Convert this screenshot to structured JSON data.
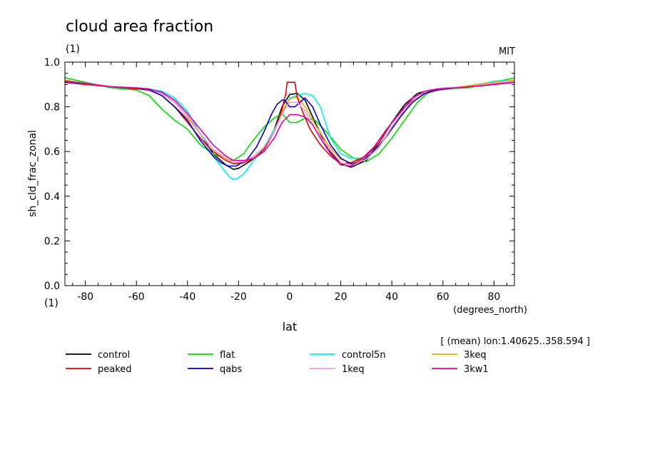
{
  "chart_data": {
    "type": "line",
    "title": "cloud area fraction",
    "subtitle_left": "(1)",
    "subtitle_right": "MIT",
    "ylabel": "sh_cld_frac_zonal",
    "yunit": "(1)",
    "xlabel": "lat",
    "xunit": "(degrees_north)",
    "annotation": "[ (mean) lon:1.40625..358.594 ]",
    "xlim": [
      -88,
      88
    ],
    "ylim": [
      0,
      1
    ],
    "xticks": [
      -80,
      -60,
      -40,
      -20,
      0,
      20,
      40,
      60,
      80
    ],
    "xtick_labels": [
      "-80",
      "-60",
      "-40",
      "-20",
      "0",
      "20",
      "40",
      "60",
      "80"
    ],
    "yticks": [
      0,
      0.2,
      0.4,
      0.6,
      0.8,
      1.0
    ],
    "ytick_labels": [
      "0.0",
      "0.2",
      "0.4",
      "0.6",
      "0.8",
      "1.0"
    ],
    "grid": false,
    "legend_position": "bottom",
    "series": [
      {
        "name": "control",
        "color": "#000000",
        "points": [
          [
            -88,
            0.91
          ],
          [
            -80,
            0.905
          ],
          [
            -70,
            0.89
          ],
          [
            -60,
            0.885
          ],
          [
            -55,
            0.88
          ],
          [
            -50,
            0.86
          ],
          [
            -45,
            0.82
          ],
          [
            -40,
            0.76
          ],
          [
            -35,
            0.68
          ],
          [
            -30,
            0.59
          ],
          [
            -25,
            0.54
          ],
          [
            -22,
            0.52
          ],
          [
            -20,
            0.525
          ],
          [
            -15,
            0.56
          ],
          [
            -10,
            0.61
          ],
          [
            -6,
            0.7
          ],
          [
            -3,
            0.8
          ],
          [
            0,
            0.855
          ],
          [
            3,
            0.86
          ],
          [
            6,
            0.83
          ],
          [
            10,
            0.73
          ],
          [
            15,
            0.61
          ],
          [
            20,
            0.545
          ],
          [
            24,
            0.53
          ],
          [
            30,
            0.56
          ],
          [
            35,
            0.64
          ],
          [
            40,
            0.73
          ],
          [
            45,
            0.81
          ],
          [
            50,
            0.86
          ],
          [
            55,
            0.875
          ],
          [
            60,
            0.88
          ],
          [
            70,
            0.89
          ],
          [
            80,
            0.9
          ],
          [
            88,
            0.91
          ]
        ]
      },
      {
        "name": "flat",
        "color": "#00dd00",
        "points": [
          [
            -88,
            0.93
          ],
          [
            -80,
            0.91
          ],
          [
            -70,
            0.885
          ],
          [
            -65,
            0.88
          ],
          [
            -60,
            0.875
          ],
          [
            -55,
            0.85
          ],
          [
            -50,
            0.79
          ],
          [
            -45,
            0.74
          ],
          [
            -40,
            0.7
          ],
          [
            -35,
            0.63
          ],
          [
            -30,
            0.59
          ],
          [
            -25,
            0.565
          ],
          [
            -22,
            0.56
          ],
          [
            -18,
            0.59
          ],
          [
            -15,
            0.64
          ],
          [
            -10,
            0.71
          ],
          [
            -6,
            0.75
          ],
          [
            -3,
            0.77
          ],
          [
            0,
            0.73
          ],
          [
            3,
            0.73
          ],
          [
            6,
            0.75
          ],
          [
            10,
            0.74
          ],
          [
            15,
            0.68
          ],
          [
            20,
            0.61
          ],
          [
            25,
            0.57
          ],
          [
            30,
            0.555
          ],
          [
            35,
            0.59
          ],
          [
            40,
            0.66
          ],
          [
            45,
            0.74
          ],
          [
            50,
            0.82
          ],
          [
            55,
            0.87
          ],
          [
            60,
            0.88
          ],
          [
            70,
            0.885
          ],
          [
            80,
            0.91
          ],
          [
            88,
            0.93
          ]
        ]
      },
      {
        "name": "control5n",
        "color": "#00eeee",
        "points": [
          [
            -88,
            0.92
          ],
          [
            -80,
            0.905
          ],
          [
            -70,
            0.89
          ],
          [
            -60,
            0.88
          ],
          [
            -55,
            0.88
          ],
          [
            -50,
            0.87
          ],
          [
            -45,
            0.84
          ],
          [
            -40,
            0.78
          ],
          [
            -35,
            0.68
          ],
          [
            -30,
            0.58
          ],
          [
            -26,
            0.52
          ],
          [
            -23,
            0.48
          ],
          [
            -21,
            0.475
          ],
          [
            -18,
            0.5
          ],
          [
            -14,
            0.56
          ],
          [
            -10,
            0.62
          ],
          [
            -6,
            0.7
          ],
          [
            -3,
            0.77
          ],
          [
            0,
            0.84
          ],
          [
            3,
            0.85
          ],
          [
            6,
            0.86
          ],
          [
            9,
            0.85
          ],
          [
            12,
            0.8
          ],
          [
            16,
            0.66
          ],
          [
            20,
            0.59
          ],
          [
            24,
            0.57
          ],
          [
            30,
            0.57
          ],
          [
            35,
            0.62
          ],
          [
            40,
            0.71
          ],
          [
            45,
            0.79
          ],
          [
            50,
            0.85
          ],
          [
            55,
            0.875
          ],
          [
            60,
            0.88
          ],
          [
            70,
            0.89
          ],
          [
            80,
            0.915
          ],
          [
            88,
            0.92
          ]
        ]
      },
      {
        "name": "3keq",
        "color": "#eeaa00",
        "points": [
          [
            -88,
            0.92
          ],
          [
            -80,
            0.905
          ],
          [
            -70,
            0.89
          ],
          [
            -60,
            0.885
          ],
          [
            -55,
            0.875
          ],
          [
            -50,
            0.85
          ],
          [
            -45,
            0.8
          ],
          [
            -40,
            0.75
          ],
          [
            -35,
            0.68
          ],
          [
            -30,
            0.61
          ],
          [
            -25,
            0.57
          ],
          [
            -22,
            0.55
          ],
          [
            -18,
            0.555
          ],
          [
            -14,
            0.58
          ],
          [
            -10,
            0.62
          ],
          [
            -6,
            0.69
          ],
          [
            -3,
            0.78
          ],
          [
            0,
            0.835
          ],
          [
            3,
            0.845
          ],
          [
            6,
            0.8
          ],
          [
            10,
            0.72
          ],
          [
            15,
            0.63
          ],
          [
            20,
            0.565
          ],
          [
            24,
            0.55
          ],
          [
            30,
            0.57
          ],
          [
            35,
            0.62
          ],
          [
            40,
            0.7
          ],
          [
            45,
            0.78
          ],
          [
            50,
            0.84
          ],
          [
            55,
            0.87
          ],
          [
            60,
            0.88
          ],
          [
            70,
            0.895
          ],
          [
            80,
            0.91
          ],
          [
            88,
            0.92
          ]
        ]
      },
      {
        "name": "peaked",
        "color": "#ee0000",
        "points": [
          [
            -88,
            0.91
          ],
          [
            -80,
            0.9
          ],
          [
            -70,
            0.89
          ],
          [
            -60,
            0.88
          ],
          [
            -55,
            0.875
          ],
          [
            -50,
            0.85
          ],
          [
            -45,
            0.8
          ],
          [
            -40,
            0.73
          ],
          [
            -35,
            0.66
          ],
          [
            -30,
            0.6
          ],
          [
            -25,
            0.56
          ],
          [
            -22,
            0.545
          ],
          [
            -18,
            0.55
          ],
          [
            -14,
            0.57
          ],
          [
            -10,
            0.61
          ],
          [
            -6,
            0.69
          ],
          [
            -3,
            0.79
          ],
          [
            -1.5,
            0.86
          ],
          [
            -1,
            0.91
          ],
          [
            2,
            0.91
          ],
          [
            3,
            0.84
          ],
          [
            5,
            0.78
          ],
          [
            8,
            0.7
          ],
          [
            12,
            0.63
          ],
          [
            16,
            0.58
          ],
          [
            20,
            0.545
          ],
          [
            24,
            0.55
          ],
          [
            30,
            0.58
          ],
          [
            35,
            0.64
          ],
          [
            40,
            0.73
          ],
          [
            45,
            0.8
          ],
          [
            50,
            0.85
          ],
          [
            55,
            0.87
          ],
          [
            60,
            0.88
          ],
          [
            70,
            0.89
          ],
          [
            80,
            0.9
          ],
          [
            88,
            0.91
          ]
        ]
      },
      {
        "name": "qabs",
        "color": "#0000cc",
        "points": [
          [
            -88,
            0.91
          ],
          [
            -80,
            0.905
          ],
          [
            -70,
            0.89
          ],
          [
            -60,
            0.885
          ],
          [
            -55,
            0.875
          ],
          [
            -50,
            0.85
          ],
          [
            -45,
            0.8
          ],
          [
            -40,
            0.74
          ],
          [
            -35,
            0.65
          ],
          [
            -30,
            0.58
          ],
          [
            -27,
            0.55
          ],
          [
            -24,
            0.535
          ],
          [
            -21,
            0.535
          ],
          [
            -17,
            0.56
          ],
          [
            -13,
            0.62
          ],
          [
            -10,
            0.69
          ],
          [
            -7,
            0.77
          ],
          [
            -5,
            0.81
          ],
          [
            -3,
            0.83
          ],
          [
            -2,
            0.83
          ],
          [
            0,
            0.8
          ],
          [
            2,
            0.8
          ],
          [
            4,
            0.82
          ],
          [
            6,
            0.84
          ],
          [
            9,
            0.8
          ],
          [
            12,
            0.72
          ],
          [
            16,
            0.63
          ],
          [
            20,
            0.57
          ],
          [
            24,
            0.545
          ],
          [
            28,
            0.555
          ],
          [
            33,
            0.6
          ],
          [
            38,
            0.67
          ],
          [
            43,
            0.75
          ],
          [
            48,
            0.82
          ],
          [
            53,
            0.86
          ],
          [
            58,
            0.875
          ],
          [
            65,
            0.885
          ],
          [
            75,
            0.895
          ],
          [
            88,
            0.91
          ]
        ]
      },
      {
        "name": "1keq",
        "color": "#ee99dd",
        "points": [
          [
            -88,
            0.915
          ],
          [
            -80,
            0.905
          ],
          [
            -70,
            0.89
          ],
          [
            -60,
            0.885
          ],
          [
            -55,
            0.88
          ],
          [
            -50,
            0.86
          ],
          [
            -45,
            0.82
          ],
          [
            -40,
            0.76
          ],
          [
            -35,
            0.68
          ],
          [
            -30,
            0.61
          ],
          [
            -25,
            0.565
          ],
          [
            -22,
            0.55
          ],
          [
            -18,
            0.555
          ],
          [
            -14,
            0.58
          ],
          [
            -10,
            0.62
          ],
          [
            -6,
            0.69
          ],
          [
            -3,
            0.77
          ],
          [
            0,
            0.82
          ],
          [
            3,
            0.82
          ],
          [
            6,
            0.78
          ],
          [
            10,
            0.7
          ],
          [
            15,
            0.62
          ],
          [
            20,
            0.55
          ],
          [
            24,
            0.54
          ],
          [
            30,
            0.565
          ],
          [
            35,
            0.62
          ],
          [
            40,
            0.71
          ],
          [
            45,
            0.79
          ],
          [
            50,
            0.85
          ],
          [
            55,
            0.875
          ],
          [
            60,
            0.885
          ],
          [
            70,
            0.89
          ],
          [
            80,
            0.905
          ],
          [
            88,
            0.915
          ]
        ]
      },
      {
        "name": "3kw1",
        "color": "#dd00aa",
        "points": [
          [
            -88,
            0.915
          ],
          [
            -80,
            0.905
          ],
          [
            -70,
            0.89
          ],
          [
            -60,
            0.885
          ],
          [
            -55,
            0.88
          ],
          [
            -50,
            0.865
          ],
          [
            -45,
            0.83
          ],
          [
            -40,
            0.77
          ],
          [
            -35,
            0.7
          ],
          [
            -30,
            0.63
          ],
          [
            -25,
            0.58
          ],
          [
            -22,
            0.56
          ],
          [
            -18,
            0.56
          ],
          [
            -14,
            0.57
          ],
          [
            -10,
            0.6
          ],
          [
            -6,
            0.66
          ],
          [
            -3,
            0.73
          ],
          [
            0,
            0.765
          ],
          [
            3,
            0.765
          ],
          [
            6,
            0.755
          ],
          [
            9,
            0.72
          ],
          [
            12,
            0.66
          ],
          [
            16,
            0.59
          ],
          [
            20,
            0.54
          ],
          [
            24,
            0.535
          ],
          [
            28,
            0.565
          ],
          [
            33,
            0.62
          ],
          [
            38,
            0.7
          ],
          [
            43,
            0.77
          ],
          [
            48,
            0.84
          ],
          [
            53,
            0.87
          ],
          [
            58,
            0.88
          ],
          [
            65,
            0.885
          ],
          [
            75,
            0.895
          ],
          [
            88,
            0.91
          ]
        ]
      }
    ]
  }
}
